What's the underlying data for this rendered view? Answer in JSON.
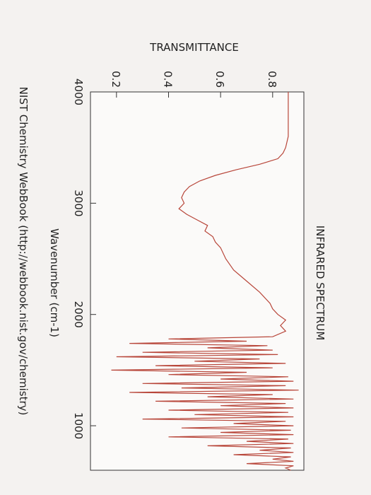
{
  "chart_data": {
    "type": "line",
    "title": "INFRARED SPECTRUM",
    "y_label": "TRANSMITTANCE",
    "x_label": "Wavenumber (cm-1)",
    "source": "NIST Chemistry WebBook (http://webbook.nist.gov/chemistry)",
    "color": "#b8463a",
    "xlim": [
      4000,
      600
    ],
    "xticks": [
      4000,
      3000,
      2000,
      1000
    ],
    "ylim": [
      0.1,
      0.92
    ],
    "yticks": [
      0.2,
      0.4,
      0.6,
      0.8
    ],
    "x": [
      4000,
      3900,
      3800,
      3700,
      3600,
      3500,
      3450,
      3400,
      3350,
      3300,
      3250,
      3200,
      3150,
      3100,
      3050,
      3000,
      2950,
      2900,
      2850,
      2800,
      2750,
      2700,
      2650,
      2600,
      2500,
      2400,
      2300,
      2200,
      2100,
      2050,
      2000,
      1950,
      1900,
      1850,
      1800,
      1780,
      1760,
      1740,
      1720,
      1700,
      1680,
      1660,
      1640,
      1620,
      1600,
      1580,
      1560,
      1540,
      1520,
      1500,
      1480,
      1460,
      1440,
      1420,
      1400,
      1380,
      1360,
      1340,
      1320,
      1300,
      1280,
      1260,
      1240,
      1220,
      1200,
      1180,
      1160,
      1140,
      1120,
      1100,
      1080,
      1060,
      1040,
      1020,
      1000,
      980,
      960,
      940,
      920,
      900,
      880,
      860,
      840,
      820,
      800,
      780,
      760,
      740,
      720,
      700,
      680,
      660,
      640,
      620,
      600
    ],
    "values": [
      0.86,
      0.86,
      0.86,
      0.86,
      0.86,
      0.85,
      0.84,
      0.82,
      0.75,
      0.66,
      0.58,
      0.52,
      0.48,
      0.46,
      0.45,
      0.46,
      0.44,
      0.47,
      0.51,
      0.55,
      0.54,
      0.57,
      0.58,
      0.6,
      0.62,
      0.65,
      0.7,
      0.75,
      0.79,
      0.8,
      0.82,
      0.85,
      0.83,
      0.85,
      0.8,
      0.4,
      0.7,
      0.25,
      0.78,
      0.55,
      0.8,
      0.3,
      0.82,
      0.2,
      0.75,
      0.5,
      0.85,
      0.35,
      0.8,
      0.18,
      0.7,
      0.4,
      0.86,
      0.6,
      0.88,
      0.3,
      0.85,
      0.45,
      0.9,
      0.25,
      0.8,
      0.55,
      0.88,
      0.35,
      0.85,
      0.6,
      0.88,
      0.4,
      0.86,
      0.5,
      0.88,
      0.3,
      0.85,
      0.65,
      0.88,
      0.45,
      0.87,
      0.6,
      0.88,
      0.4,
      0.86,
      0.7,
      0.88,
      0.55,
      0.87,
      0.75,
      0.88,
      0.65,
      0.87,
      0.8,
      0.88,
      0.7,
      0.88,
      0.85,
      0.87
    ]
  }
}
